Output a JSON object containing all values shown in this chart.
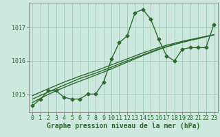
{
  "hours": [
    0,
    1,
    2,
    3,
    4,
    5,
    6,
    7,
    8,
    9,
    10,
    11,
    12,
    13,
    14,
    15,
    16,
    17,
    18,
    19,
    20,
    21,
    22,
    23
  ],
  "pressure": [
    1014.65,
    1014.85,
    1015.1,
    1015.1,
    1014.9,
    1014.85,
    1014.85,
    1015.0,
    1015.0,
    1015.35,
    1016.05,
    1016.55,
    1016.75,
    1017.45,
    1017.55,
    1017.25,
    1016.65,
    1016.15,
    1016.0,
    1016.35,
    1016.4,
    1016.4,
    1016.4,
    1017.1
  ],
  "trend1": [
    1014.85,
    1014.96,
    1015.06,
    1015.17,
    1015.27,
    1015.37,
    1015.47,
    1015.55,
    1015.63,
    1015.72,
    1015.81,
    1015.91,
    1016.0,
    1016.09,
    1016.18,
    1016.27,
    1016.36,
    1016.43,
    1016.5,
    1016.56,
    1016.62,
    1016.67,
    1016.73,
    1016.78
  ],
  "trend2": [
    1014.95,
    1015.06,
    1015.16,
    1015.26,
    1015.36,
    1015.45,
    1015.54,
    1015.62,
    1015.7,
    1015.79,
    1015.88,
    1015.97,
    1016.06,
    1016.15,
    1016.24,
    1016.32,
    1016.4,
    1016.47,
    1016.53,
    1016.59,
    1016.64,
    1016.69,
    1016.74,
    1016.79
  ],
  "trend3": [
    1014.75,
    1014.87,
    1014.99,
    1015.1,
    1015.2,
    1015.3,
    1015.39,
    1015.48,
    1015.57,
    1015.66,
    1015.76,
    1015.86,
    1015.96,
    1016.06,
    1016.16,
    1016.25,
    1016.34,
    1016.42,
    1016.49,
    1016.56,
    1016.62,
    1016.67,
    1016.73,
    1016.78
  ],
  "line_color": "#2d6a2d",
  "bg_color": "#cce8df",
  "grid_color": "#9ec8b8",
  "ylabel_ticks": [
    1015,
    1016,
    1017
  ],
  "xlabel": "Graphe pression niveau de la mer (hPa)",
  "ylim_min": 1014.45,
  "ylim_max": 1017.75,
  "xlim_min": -0.5,
  "xlim_max": 23.5,
  "marker": "D",
  "markersize": 2.5,
  "linewidth": 1.0,
  "xlabel_fontsize": 7,
  "tick_fontsize": 6,
  "font_family": "monospace"
}
